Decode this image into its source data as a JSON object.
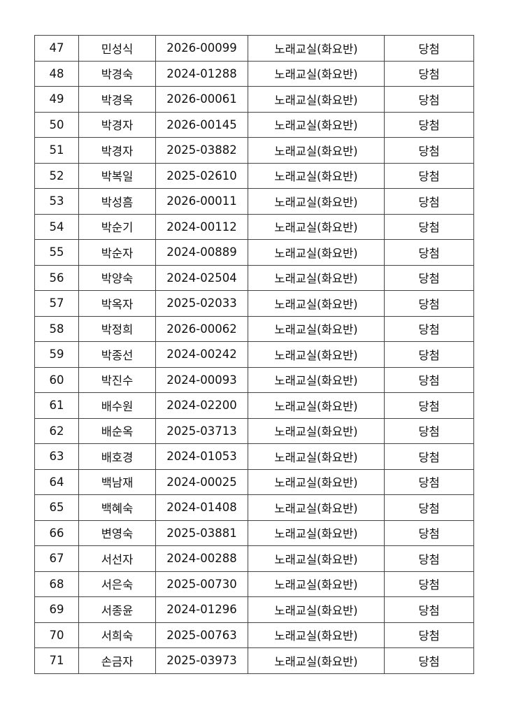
{
  "table": {
    "rows": [
      [
        "47",
        "민성식",
        "2026-00099",
        "노래교실(화요반)",
        "당첨"
      ],
      [
        "48",
        "박경숙",
        "2024-01288",
        "노래교실(화요반)",
        "당첨"
      ],
      [
        "49",
        "박경옥",
        "2026-00061",
        "노래교실(화요반)",
        "당첨"
      ],
      [
        "50",
        "박경자",
        "2026-00145",
        "노래교실(화요반)",
        "당첨"
      ],
      [
        "51",
        "박경자",
        "2025-03882",
        "노래교실(화요반)",
        "당첨"
      ],
      [
        "52",
        "박복일",
        "2025-02610",
        "노래교실(화요반)",
        "당첨"
      ],
      [
        "53",
        "박성흠",
        "2026-00011",
        "노래교실(화요반)",
        "당첨"
      ],
      [
        "54",
        "박순기",
        "2024-00112",
        "노래교실(화요반)",
        "당첨"
      ],
      [
        "55",
        "박순자",
        "2024-00889",
        "노래교실(화요반)",
        "당첨"
      ],
      [
        "56",
        "박양숙",
        "2024-02504",
        "노래교실(화요반)",
        "당첨"
      ],
      [
        "57",
        "박옥자",
        "2025-02033",
        "노래교실(화요반)",
        "당첨"
      ],
      [
        "58",
        "박정희",
        "2026-00062",
        "노래교실(화요반)",
        "당첨"
      ],
      [
        "59",
        "박종선",
        "2024-00242",
        "노래교실(화요반)",
        "당첨"
      ],
      [
        "60",
        "박진수",
        "2024-00093",
        "노래교실(화요반)",
        "당첨"
      ],
      [
        "61",
        "배수원",
        "2024-02200",
        "노래교실(화요반)",
        "당첨"
      ],
      [
        "62",
        "배순옥",
        "2025-03713",
        "노래교실(화요반)",
        "당첨"
      ],
      [
        "63",
        "배호경",
        "2024-01053",
        "노래교실(화요반)",
        "당첨"
      ],
      [
        "64",
        "백남재",
        "2024-00025",
        "노래교실(화요반)",
        "당첨"
      ],
      [
        "65",
        "백혜숙",
        "2024-01408",
        "노래교실(화요반)",
        "당첨"
      ],
      [
        "66",
        "변영숙",
        "2025-03881",
        "노래교실(화요반)",
        "당첨"
      ],
      [
        "67",
        "서선자",
        "2024-00288",
        "노래교실(화요반)",
        "당첨"
      ],
      [
        "68",
        "서은숙",
        "2025-00730",
        "노래교실(화요반)",
        "당첨"
      ],
      [
        "69",
        "서종윤",
        "2024-01296",
        "노래교실(화요반)",
        "당첨"
      ],
      [
        "70",
        "서희숙",
        "2025-00763",
        "노래교실(화요반)",
        "당첨"
      ],
      [
        "71",
        "손금자",
        "2025-03973",
        "노래교실(화요반)",
        "당첨"
      ]
    ]
  }
}
